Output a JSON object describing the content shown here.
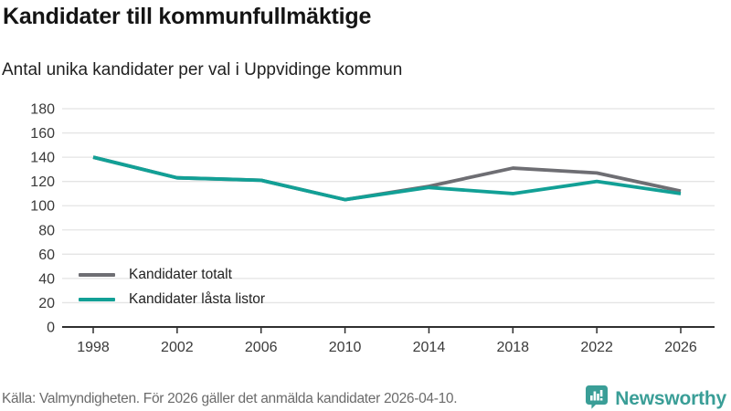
{
  "header": {
    "title": "Kandidater till kommunfullmäktige",
    "subtitle": "Antal unika kandidater per val i Uppvidinge kommun"
  },
  "chart_data": {
    "type": "line",
    "categories": [
      "1998",
      "2002",
      "2006",
      "2010",
      "2014",
      "2018",
      "2022",
      "2026"
    ],
    "series": [
      {
        "name": "Kandidater totalt",
        "color": "#6e6e73",
        "values": [
          140,
          123,
          121,
          105,
          116,
          131,
          127,
          112
        ]
      },
      {
        "name": "Kandidater låsta listor",
        "color": "#12a096",
        "values": [
          140,
          123,
          121,
          105,
          115,
          110,
          120,
          110
        ]
      }
    ],
    "title": "Kandidater till kommunfullmäktige",
    "subtitle": "Antal unika kandidater per val i Uppvidinge kommun",
    "xlabel": "",
    "ylabel": "",
    "ylim": [
      0,
      180
    ],
    "ytick_step": 20,
    "grid": true,
    "legend_position": "inside-bottom-left"
  },
  "colors": {
    "grid": "#e4e4e4",
    "axis": "#2f2f2f",
    "tick_text": "#3a3a3a",
    "accent": "#12a096"
  },
  "footer": {
    "source": "Källa: Valmyndigheten. För 2026 gäller det anmälda kandidater 2026-04-10.",
    "brand": "Newsworthy"
  }
}
